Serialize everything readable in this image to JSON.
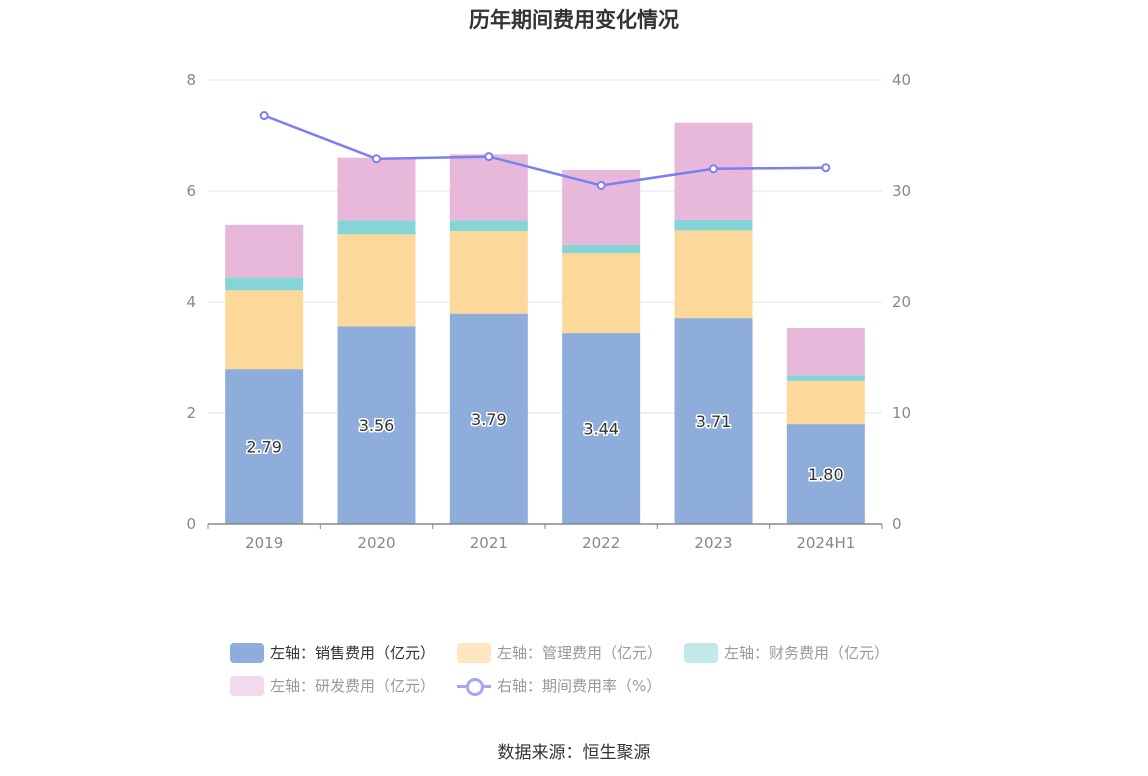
{
  "title": "历年期间费用变化情况",
  "source": "数据来源：恒生聚源",
  "colors": {
    "sales": "#8eadda",
    "admin": "#fdd89b",
    "finance": "#85d4d6",
    "rnd": "#e8b8da",
    "rate": "#7b7ff0",
    "grid": "#e0e3ef",
    "axis": "#888888"
  },
  "chart_data": {
    "type": "bar",
    "stacked": true,
    "categories": [
      "2019",
      "2020",
      "2021",
      "2022",
      "2023",
      "2024H1"
    ],
    "left_axis": {
      "ylim": [
        0,
        8
      ],
      "ticks": [
        "0",
        "2",
        "4",
        "6",
        "8"
      ]
    },
    "right_axis": {
      "ylim": [
        0,
        40
      ],
      "ticks": [
        "0",
        "10",
        "20",
        "30",
        "40"
      ]
    },
    "series": [
      {
        "name": "左轴：销售费用（亿元）",
        "key": "sales",
        "axis": "left",
        "values": [
          2.79,
          3.56,
          3.79,
          3.44,
          3.71,
          1.8
        ],
        "labels": [
          "2.79",
          "3.56",
          "3.79",
          "3.44",
          "3.71",
          "1.80"
        ]
      },
      {
        "name": "左轴：管理费用（亿元）",
        "key": "admin",
        "axis": "left",
        "values": [
          1.42,
          1.66,
          1.49,
          1.44,
          1.58,
          0.78
        ]
      },
      {
        "name": "左轴：财务费用（亿元）",
        "key": "finance",
        "axis": "left",
        "values": [
          0.23,
          0.25,
          0.19,
          0.15,
          0.19,
          0.1
        ]
      },
      {
        "name": "左轴：研发费用（亿元）",
        "key": "rnd",
        "axis": "left",
        "values": [
          0.95,
          1.13,
          1.19,
          1.35,
          1.75,
          0.85
        ]
      },
      {
        "name": "右轴：期间费用率（%）",
        "key": "rate",
        "axis": "right",
        "type": "line",
        "values": [
          36.8,
          32.9,
          33.1,
          30.5,
          32.0,
          32.1
        ]
      }
    ],
    "legend_position": "bottom",
    "grid": true
  }
}
